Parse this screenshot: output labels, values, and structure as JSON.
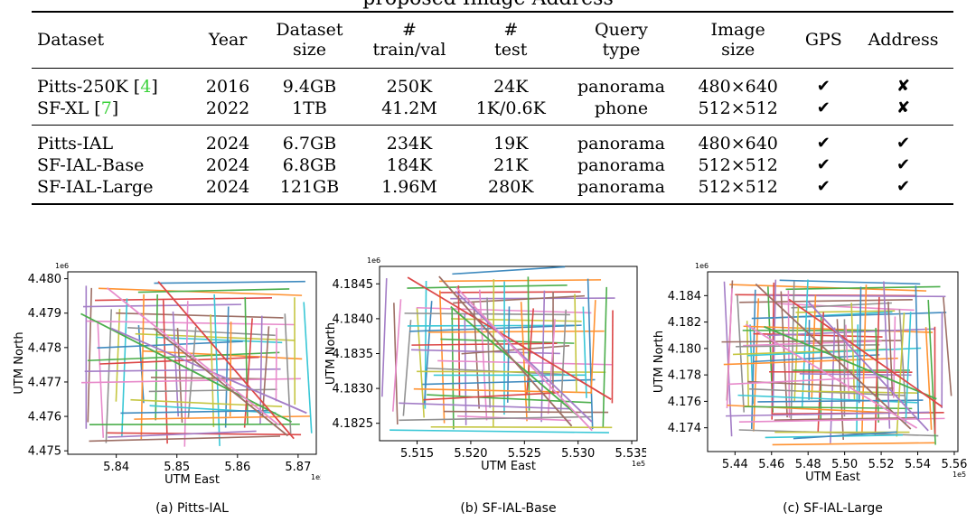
{
  "title_fragment": "proposed Image Address",
  "table": {
    "headers": [
      {
        "l1": "Dataset",
        "l2": ""
      },
      {
        "l1": "Year",
        "l2": ""
      },
      {
        "l1": "Dataset",
        "l2": "size"
      },
      {
        "l1": "#",
        "l2": "train/val"
      },
      {
        "l1": "#",
        "l2": "test"
      },
      {
        "l1": "Query",
        "l2": "type"
      },
      {
        "l1": "Image",
        "l2": "size"
      },
      {
        "l1": "GPS",
        "l2": ""
      },
      {
        "l1": "Address",
        "l2": ""
      }
    ],
    "group1": [
      {
        "name": "Pitts-250K",
        "cite": "4",
        "year": "2016",
        "size": "9.4GB",
        "train": "250K",
        "test": "24K",
        "query": "panorama",
        "img": "480×640",
        "gps": "✔",
        "addr": "✘"
      },
      {
        "name": "SF-XL",
        "cite": "7",
        "year": "2022",
        "size": "1TB",
        "train": "41.2M",
        "test": "1K/0.6K",
        "query": "phone",
        "img": "512×512",
        "gps": "✔",
        "addr": "✘"
      }
    ],
    "group2": [
      {
        "name": "Pitts-IAL",
        "year": "2024",
        "size": "6.7GB",
        "train": "234K",
        "test": "19K",
        "query": "panorama",
        "img": "480×640",
        "gps": "✔",
        "addr": "✔"
      },
      {
        "name": "SF-IAL-Base",
        "year": "2024",
        "size": "6.8GB",
        "train": "184K",
        "test": "21K",
        "query": "panorama",
        "img": "512×512",
        "gps": "✔",
        "addr": "✔"
      },
      {
        "name": "SF-IAL-Large",
        "year": "2024",
        "size": "121GB",
        "train": "1.96M",
        "test": "280K",
        "query": "panorama",
        "img": "512×512",
        "gps": "✔",
        "addr": "✔"
      }
    ]
  },
  "chart_data": [
    {
      "type": "scatter",
      "title": "(a) Pitts-IAL",
      "xlabel": "UTM East",
      "ylabel": "UTM North",
      "x_exponent": "1e5",
      "y_exponent": "1e6",
      "xticks": [
        "5.84",
        "5.85",
        "5.86",
        "5.87"
      ],
      "xtick_values": [
        5.84,
        5.85,
        5.86,
        5.87
      ],
      "yticks": [
        "4.475",
        "4.476",
        "4.477",
        "4.478",
        "4.479",
        "4.480"
      ],
      "ytick_values": [
        4.475,
        4.476,
        4.477,
        4.478,
        4.479,
        4.48
      ],
      "xlim": [
        5.832,
        5.873
      ],
      "ylim": [
        4.4749,
        4.4802
      ],
      "extent": {
        "x": [
          5.834,
          5.872
        ],
        "y": [
          4.4751,
          4.48
        ]
      }
    },
    {
      "type": "scatter",
      "title": "(b) SF-IAL-Base",
      "xlabel": "UTM East",
      "ylabel": "UTM North",
      "x_exponent": "1e5",
      "y_exponent": "1e6",
      "xticks": [
        "5.515",
        "5.520",
        "5.525",
        "5.530",
        "5.535"
      ],
      "xtick_values": [
        5.515,
        5.52,
        5.525,
        5.53,
        5.535
      ],
      "yticks": [
        "4.1825",
        "4.1830",
        "4.1835",
        "4.1840",
        "4.1845"
      ],
      "ytick_values": [
        4.1825,
        4.183,
        4.1835,
        4.184,
        4.1845
      ],
      "xlim": [
        5.5115,
        5.5355
      ],
      "ylim": [
        4.18225,
        4.18475
      ],
      "extent": {
        "x": [
          5.512,
          5.5335
        ],
        "y": [
          4.18235,
          4.18465
        ]
      }
    },
    {
      "type": "scatter",
      "title": "(c) SF-IAL-Large",
      "xlabel": "UTM East",
      "ylabel": "UTM North",
      "x_exponent": "1e5",
      "y_exponent": "1e6",
      "xticks": [
        "5.44",
        "5.46",
        "5.48",
        "5.50",
        "5.52",
        "5.54",
        "5.56"
      ],
      "xtick_values": [
        5.44,
        5.46,
        5.48,
        5.5,
        5.52,
        5.54,
        5.56
      ],
      "yticks": [
        "4.174",
        "4.176",
        "4.178",
        "4.180",
        "4.182",
        "4.184"
      ],
      "ytick_values": [
        4.174,
        4.176,
        4.178,
        4.18,
        4.182,
        4.184
      ],
      "xlim": [
        5.425,
        5.562
      ],
      "ylim": [
        4.1722,
        4.1858
      ],
      "extent": {
        "x": [
          5.432,
          5.556
        ],
        "y": [
          4.1727,
          4.1853
        ]
      }
    }
  ],
  "colors": [
    "#1f77b4",
    "#ff7f0e",
    "#2ca02c",
    "#d62728",
    "#9467bd",
    "#8c564b",
    "#e377c2",
    "#7f7f7f",
    "#bcbd22",
    "#17becf"
  ]
}
